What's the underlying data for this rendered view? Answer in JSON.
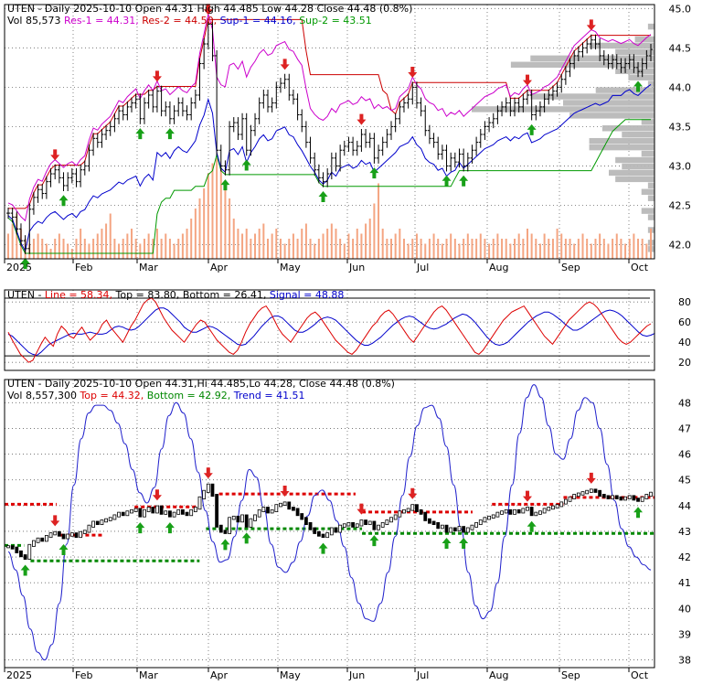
{
  "colors": {
    "res1": "#cc00cc",
    "res2": "#cc0000",
    "sup1": "#0000cc",
    "sup2": "#009900",
    "volume": "#f4a582",
    "profile": "#b8b8b8",
    "up_arrow": "#18a018",
    "down_arrow": "#dd2222",
    "osc_line": "#dd0000",
    "osc_signal": "#0000cc",
    "trend_line": "#2222cc",
    "top_dash": "#dd0000",
    "bottom_dash": "#008800"
  },
  "chart_data": [
    {
      "type": "line",
      "panel": "price",
      "title_parts": [
        {
          "text": "UTEN - Daily 2025-10-10 Open 44.31  High 44.485  Low 44.28  Close 44.48 (0.8%)",
          "color": "#000000"
        }
      ],
      "legend_parts": [
        {
          "text": "Vol 85,573 ",
          "color": "#000000"
        },
        {
          "text": "Res-1 = 44.31, ",
          "color": "#cc00cc"
        },
        {
          "text": "Res-2 = 44.50, ",
          "color": "#cc0000"
        },
        {
          "text": "Sup-1 = 44.16, ",
          "color": "#0000cc"
        },
        {
          "text": "Sup-2 = 43.51",
          "color": "#009900"
        }
      ],
      "y_ticks": [
        "42.0",
        "42.5",
        "43.0",
        "43.5",
        "44.0",
        "44.5",
        "45.0"
      ],
      "ylim": [
        41.82,
        45.05
      ],
      "x_ticks": [
        "2025",
        "Feb",
        "Mar",
        "Apr",
        "May",
        "Jun",
        "Jul",
        "Aug",
        "Sep",
        "Oct"
      ],
      "close": [
        42.4,
        42.35,
        42.2,
        42.05,
        41.95,
        42.45,
        42.6,
        42.7,
        42.65,
        42.8,
        42.9,
        42.95,
        42.85,
        42.75,
        42.85,
        42.9,
        42.8,
        42.95,
        43.0,
        43.2,
        43.35,
        43.3,
        43.4,
        43.45,
        43.5,
        43.6,
        43.7,
        43.65,
        43.75,
        43.8,
        43.85,
        43.6,
        43.8,
        43.9,
        43.75,
        43.95,
        43.7,
        43.75,
        43.6,
        43.7,
        43.8,
        43.7,
        43.65,
        43.8,
        43.9,
        44.3,
        44.55,
        44.8,
        44.4,
        43.2,
        43.0,
        42.95,
        43.5,
        43.55,
        43.4,
        43.6,
        43.2,
        43.45,
        43.6,
        43.8,
        43.9,
        43.75,
        43.8,
        44.0,
        44.05,
        44.1,
        43.9,
        43.85,
        43.65,
        43.5,
        43.3,
        43.1,
        42.95,
        42.85,
        42.8,
        42.9,
        43.1,
        43.0,
        43.2,
        43.25,
        43.3,
        43.2,
        43.25,
        43.4,
        43.3,
        43.35,
        43.1,
        43.2,
        43.3,
        43.4,
        43.5,
        43.6,
        43.75,
        43.8,
        43.85,
        44.0,
        43.8,
        43.7,
        43.45,
        43.35,
        43.3,
        43.15,
        43.2,
        43.0,
        43.1,
        43.05,
        43.15,
        43.0,
        43.1,
        43.2,
        43.3,
        43.4,
        43.5,
        43.55,
        43.6,
        43.7,
        43.75,
        43.8,
        43.7,
        43.8,
        43.75,
        43.85,
        43.9,
        43.65,
        43.7,
        43.75,
        43.85,
        43.9,
        43.95,
        44.0,
        44.1,
        44.2,
        44.3,
        44.4,
        44.45,
        44.5,
        44.55,
        44.6,
        44.55,
        44.4,
        44.35,
        44.3,
        44.35,
        44.3,
        44.25,
        44.3,
        44.35,
        44.25,
        44.2,
        44.3,
        44.4,
        44.48
      ],
      "volume": [
        0.25,
        0.35,
        0.45,
        0.3,
        0.2,
        0.15,
        0.2,
        0.25,
        0.2,
        0.15,
        0.1,
        0.2,
        0.25,
        0.2,
        0.15,
        0.1,
        0.2,
        0.3,
        0.2,
        0.15,
        0.2,
        0.25,
        0.3,
        0.35,
        0.45,
        0.2,
        0.15,
        0.2,
        0.25,
        0.3,
        0.2,
        0.15,
        0.2,
        0.25,
        0.2,
        0.3,
        0.2,
        0.25,
        0.2,
        0.15,
        0.2,
        0.25,
        0.3,
        0.4,
        0.5,
        0.6,
        0.7,
        0.85,
        0.95,
        1.0,
        0.9,
        0.7,
        0.6,
        0.4,
        0.3,
        0.25,
        0.3,
        0.2,
        0.25,
        0.3,
        0.35,
        0.2,
        0.25,
        0.3,
        0.2,
        0.15,
        0.2,
        0.25,
        0.2,
        0.3,
        0.35,
        0.2,
        0.15,
        0.2,
        0.25,
        0.3,
        0.35,
        0.3,
        0.2,
        0.15,
        0.25,
        0.2,
        0.3,
        0.25,
        0.35,
        0.4,
        0.55,
        0.75,
        0.3,
        0.2,
        0.2,
        0.25,
        0.3,
        0.2,
        0.15,
        0.2,
        0.25,
        0.2,
        0.15,
        0.2,
        0.25,
        0.2,
        0.15,
        0.2,
        0.25,
        0.2,
        0.15,
        0.2,
        0.25,
        0.2,
        0.2,
        0.25,
        0.2,
        0.15,
        0.2,
        0.25,
        0.2,
        0.2,
        0.15,
        0.2,
        0.25,
        0.2,
        0.3,
        0.25,
        0.2,
        0.15,
        0.25,
        0.2,
        0.2,
        0.3,
        0.25,
        0.2,
        0.2,
        0.15,
        0.2,
        0.25,
        0.2,
        0.15,
        0.2,
        0.25,
        0.2,
        0.15,
        0.2,
        0.25,
        0.2,
        0.15,
        0.2,
        0.25,
        0.2,
        0.2,
        0.15,
        0.3
      ]
    },
    {
      "type": "line",
      "panel": "oscillator",
      "legend_parts": [
        {
          "text": "UTEN - ",
          "color": "#000000"
        },
        {
          "text": "Line = 58.34, ",
          "color": "#dd0000"
        },
        {
          "text": "Top = 83.80, ",
          "color": "#000000"
        },
        {
          "text": "Bottom = 26.41, ",
          "color": "#000000"
        },
        {
          "text": "Signal = 48.88",
          "color": "#0000cc"
        }
      ],
      "y_ticks": [
        "20",
        "40",
        "60",
        "80"
      ],
      "ylim": [
        12,
        92
      ],
      "top_level": 83.8,
      "bottom_level": 26.41,
      "line": [
        50,
        42,
        35,
        28,
        24,
        20,
        22,
        30,
        38,
        45,
        40,
        36,
        48,
        56,
        52,
        46,
        44,
        50,
        55,
        48,
        42,
        46,
        50,
        58,
        62,
        55,
        50,
        45,
        40,
        48,
        56,
        62,
        70,
        78,
        82,
        84,
        80,
        72,
        64,
        58,
        52,
        48,
        44,
        40,
        46,
        52,
        58,
        62,
        60,
        54,
        48,
        42,
        38,
        34,
        30,
        28,
        32,
        40,
        50,
        58,
        64,
        70,
        74,
        76,
        70,
        62,
        54,
        48,
        44,
        40,
        46,
        52,
        58,
        64,
        68,
        70,
        66,
        60,
        54,
        48,
        42,
        38,
        34,
        30,
        28,
        32,
        38,
        44,
        50,
        56,
        60,
        66,
        70,
        72,
        68,
        62,
        56,
        50,
        44,
        40,
        46,
        52,
        58,
        64,
        70,
        74,
        76,
        72,
        66,
        60,
        54,
        48,
        42,
        36,
        30,
        28,
        32,
        38,
        44,
        50,
        56,
        62,
        66,
        70,
        72,
        74,
        76,
        70,
        64,
        58,
        52,
        46,
        42,
        38,
        44,
        50,
        56,
        62,
        66,
        70,
        74,
        78,
        80,
        78,
        74,
        68,
        62,
        56,
        50,
        44,
        40,
        38,
        40,
        44,
        48,
        52,
        56,
        58.34
      ],
      "signal": [
        48,
        46,
        42,
        38,
        34,
        30,
        28,
        27,
        30,
        34,
        38,
        40,
        42,
        44,
        46,
        48,
        49,
        48,
        48,
        49,
        50,
        49,
        48,
        48,
        49,
        52,
        55,
        56,
        55,
        53,
        52,
        53,
        56,
        60,
        64,
        68,
        72,
        74,
        74,
        72,
        68,
        64,
        60,
        55,
        52,
        50,
        50,
        52,
        54,
        56,
        55,
        53,
        50,
        47,
        44,
        41,
        38,
        37,
        38,
        42,
        46,
        51,
        56,
        60,
        64,
        66,
        66,
        64,
        60,
        56,
        52,
        50,
        50,
        52,
        55,
        58,
        62,
        64,
        65,
        64,
        62,
        58,
        54,
        50,
        46,
        42,
        39,
        37,
        37,
        39,
        42,
        45,
        49,
        53,
        57,
        60,
        63,
        65,
        66,
        65,
        62,
        59,
        56,
        54,
        53,
        54,
        56,
        58,
        61,
        64,
        66,
        68,
        67,
        64,
        60,
        55,
        50,
        45,
        41,
        38,
        37,
        38,
        40,
        44,
        48,
        52,
        56,
        60,
        63,
        66,
        68,
        70,
        70,
        68,
        65,
        62,
        58,
        55,
        52,
        52,
        54,
        57,
        60,
        63,
        66,
        69,
        71,
        72,
        71,
        69,
        66,
        62,
        58,
        54,
        50,
        47,
        46,
        47,
        48.88
      ]
    },
    {
      "type": "line",
      "panel": "trend",
      "legend_parts": [
        {
          "text": "UTEN - Daily 2025-10-10 Open 44.31,Hi 44.485,Lo 44.28, Close 44.48 (0.8%)",
          "color": "#000000"
        }
      ],
      "legend_parts_2": [
        {
          "text": "Vol 8,557,300 ",
          "color": "#000000"
        },
        {
          "text": "Top = 44.32, ",
          "color": "#dd0000"
        },
        {
          "text": "Bottom = 42.92, ",
          "color": "#008800"
        },
        {
          "text": "Trend = 41.51",
          "color": "#0000cc"
        }
      ],
      "y_ticks": [
        "38",
        "39",
        "40",
        "41",
        "42",
        "43",
        "44",
        "45",
        "46",
        "47",
        "48"
      ],
      "ylim": [
        37.7,
        48.9
      ],
      "trend": [
        42.2,
        41.5,
        40.5,
        39.2,
        38.3,
        38.0,
        38.6,
        40.2,
        42.5,
        44.8,
        46.6,
        47.6,
        47.9,
        47.9,
        47.7,
        47.2,
        46.4,
        45.4,
        44.5,
        44.1,
        44.7,
        46.2,
        47.5,
        48.0,
        47.6,
        46.6,
        45.3,
        43.8,
        42.6,
        41.8,
        41.9,
        42.8,
        44.2,
        45.4,
        45.1,
        43.9,
        42.5,
        41.6,
        41.4,
        41.8,
        42.6,
        43.6,
        44.4,
        44.6,
        44.2,
        43.4,
        42.4,
        41.2,
        40.2,
        39.6,
        39.5,
        40.2,
        41.4,
        42.8,
        44.4,
        45.9,
        47.1,
        47.8,
        47.9,
        47.4,
        46.3,
        44.8,
        43.1,
        41.4,
        40.1,
        39.6,
        39.9,
        41.0,
        42.8,
        44.8,
        46.8,
        48.2,
        48.7,
        48.2,
        47.1,
        46.0,
        45.8,
        46.6,
        47.7,
        48.2,
        48.0,
        47.0,
        45.6,
        44.2,
        43.1,
        42.4,
        42.0,
        41.7,
        41.5
      ],
      "top_segments": [
        {
          "x": [
            0,
            0.08
          ],
          "v": 44.05
        },
        {
          "x": [
            0.085,
            0.15
          ],
          "v": 42.85
        },
        {
          "x": [
            0.2,
            0.3
          ],
          "v": 43.95
        },
        {
          "x": [
            0.33,
            0.54
          ],
          "v": 44.45
        },
        {
          "x": [
            0.55,
            0.72
          ],
          "v": 43.75
        },
        {
          "x": [
            0.75,
            0.86
          ],
          "v": 44.05
        },
        {
          "x": [
            0.86,
            1.0
          ],
          "v": 44.32
        }
      ],
      "bottom_segments": [
        {
          "x": [
            0,
            0.03
          ],
          "v": 42.45
        },
        {
          "x": [
            0.04,
            0.3
          ],
          "v": 41.85
        },
        {
          "x": [
            0.31,
            0.55
          ],
          "v": 43.1
        },
        {
          "x": [
            0.55,
            1.0
          ],
          "v": 42.92
        }
      ]
    }
  ]
}
